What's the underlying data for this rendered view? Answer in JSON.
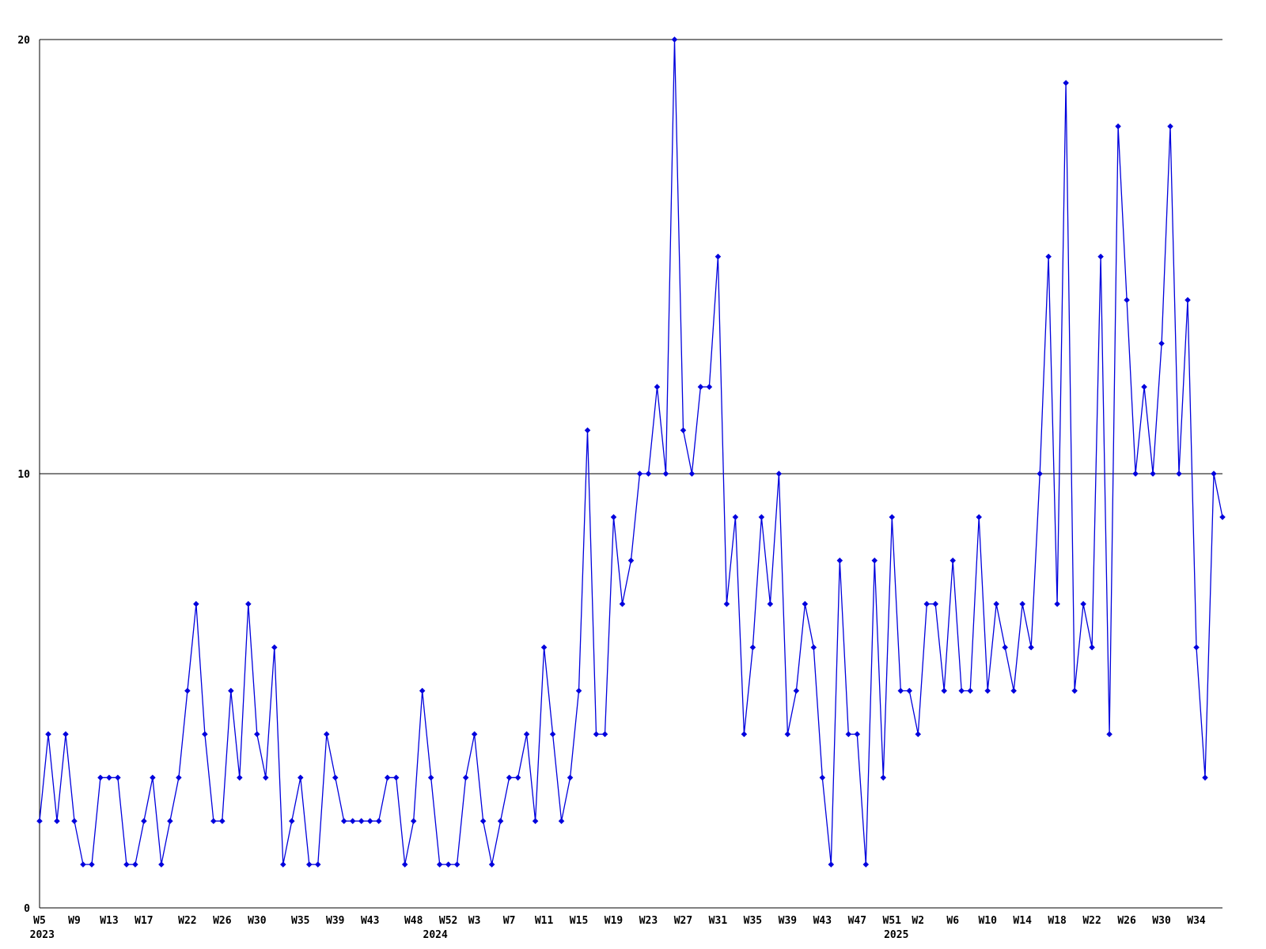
{
  "chart_data": {
    "type": "line",
    "title": "",
    "description": "Weekly count time series from week 5 of 2023 through week 37 of 2025",
    "x_start_week": {
      "year": 2023,
      "week": 5
    },
    "values": [
      2,
      4,
      2,
      4,
      2,
      1,
      1,
      3,
      3,
      3,
      1,
      1,
      2,
      3,
      1,
      2,
      3,
      5,
      7,
      4,
      2,
      2,
      5,
      3,
      7,
      4,
      3,
      6,
      1,
      2,
      3,
      1,
      1,
      4,
      3,
      2,
      2,
      2,
      2,
      2,
      3,
      3,
      1,
      2,
      5,
      3,
      1,
      1,
      1,
      3,
      4,
      2,
      1,
      2,
      3,
      3,
      4,
      2,
      6,
      4,
      2,
      3,
      5,
      11,
      4,
      4,
      9,
      7,
      8,
      10,
      10,
      12,
      10,
      20,
      11,
      10,
      12,
      12,
      15,
      7,
      9,
      4,
      6,
      9,
      7,
      10,
      4,
      5,
      7,
      6,
      3,
      1,
      8,
      4,
      4,
      1,
      8,
      3,
      9,
      5,
      5,
      4,
      7,
      7,
      5,
      8,
      5,
      5,
      9,
      5,
      7,
      6,
      5,
      7,
      6,
      10,
      15,
      7,
      19,
      5,
      7,
      6,
      15,
      4,
      18,
      14,
      10,
      12,
      10,
      13,
      18,
      10,
      14,
      6,
      3,
      10,
      9
    ],
    "x_ticks": [
      {
        "label": "W5",
        "week_index": 0
      },
      {
        "label": "W9",
        "week_index": 4
      },
      {
        "label": "W13",
        "week_index": 8
      },
      {
        "label": "W17",
        "week_index": 12
      },
      {
        "label": "W22",
        "week_index": 17
      },
      {
        "label": "W26",
        "week_index": 21
      },
      {
        "label": "W30",
        "week_index": 25
      },
      {
        "label": "W35",
        "week_index": 30
      },
      {
        "label": "W39",
        "week_index": 34
      },
      {
        "label": "W43",
        "week_index": 38
      },
      {
        "label": "W48",
        "week_index": 43
      },
      {
        "label": "W52",
        "week_index": 47
      },
      {
        "label": "W3",
        "week_index": 50
      },
      {
        "label": "W7",
        "week_index": 54
      },
      {
        "label": "W11",
        "week_index": 58
      },
      {
        "label": "W15",
        "week_index": 62
      },
      {
        "label": "W19",
        "week_index": 66
      },
      {
        "label": "W23",
        "week_index": 70
      },
      {
        "label": "W27",
        "week_index": 74
      },
      {
        "label": "W31",
        "week_index": 78
      },
      {
        "label": "W35",
        "week_index": 82
      },
      {
        "label": "W39",
        "week_index": 86
      },
      {
        "label": "W43",
        "week_index": 90
      },
      {
        "label": "W47",
        "week_index": 94
      },
      {
        "label": "W51",
        "week_index": 98
      },
      {
        "label": "W2",
        "week_index": 101
      },
      {
        "label": "W6",
        "week_index": 105
      },
      {
        "label": "W10",
        "week_index": 109
      },
      {
        "label": "W14",
        "week_index": 113
      },
      {
        "label": "W18",
        "week_index": 117
      },
      {
        "label": "W22",
        "week_index": 121
      },
      {
        "label": "W26",
        "week_index": 125
      },
      {
        "label": "W30",
        "week_index": 129
      },
      {
        "label": "W34",
        "week_index": 133
      }
    ],
    "year_labels": [
      {
        "label": "2023",
        "week_index": 0.3
      },
      {
        "label": "2024",
        "week_index": 45.5
      },
      {
        "label": "2025",
        "week_index": 98.5
      }
    ],
    "y_ticks": [
      0,
      10,
      20
    ],
    "ylim": [
      0,
      20
    ],
    "gridline_at": 10,
    "line_color": "#0000dd",
    "axis_color": "#000000",
    "background_color": "#ffffff",
    "legend": "none",
    "grid": "horizontal line at 10 and frame at 0 and 20 only"
  }
}
